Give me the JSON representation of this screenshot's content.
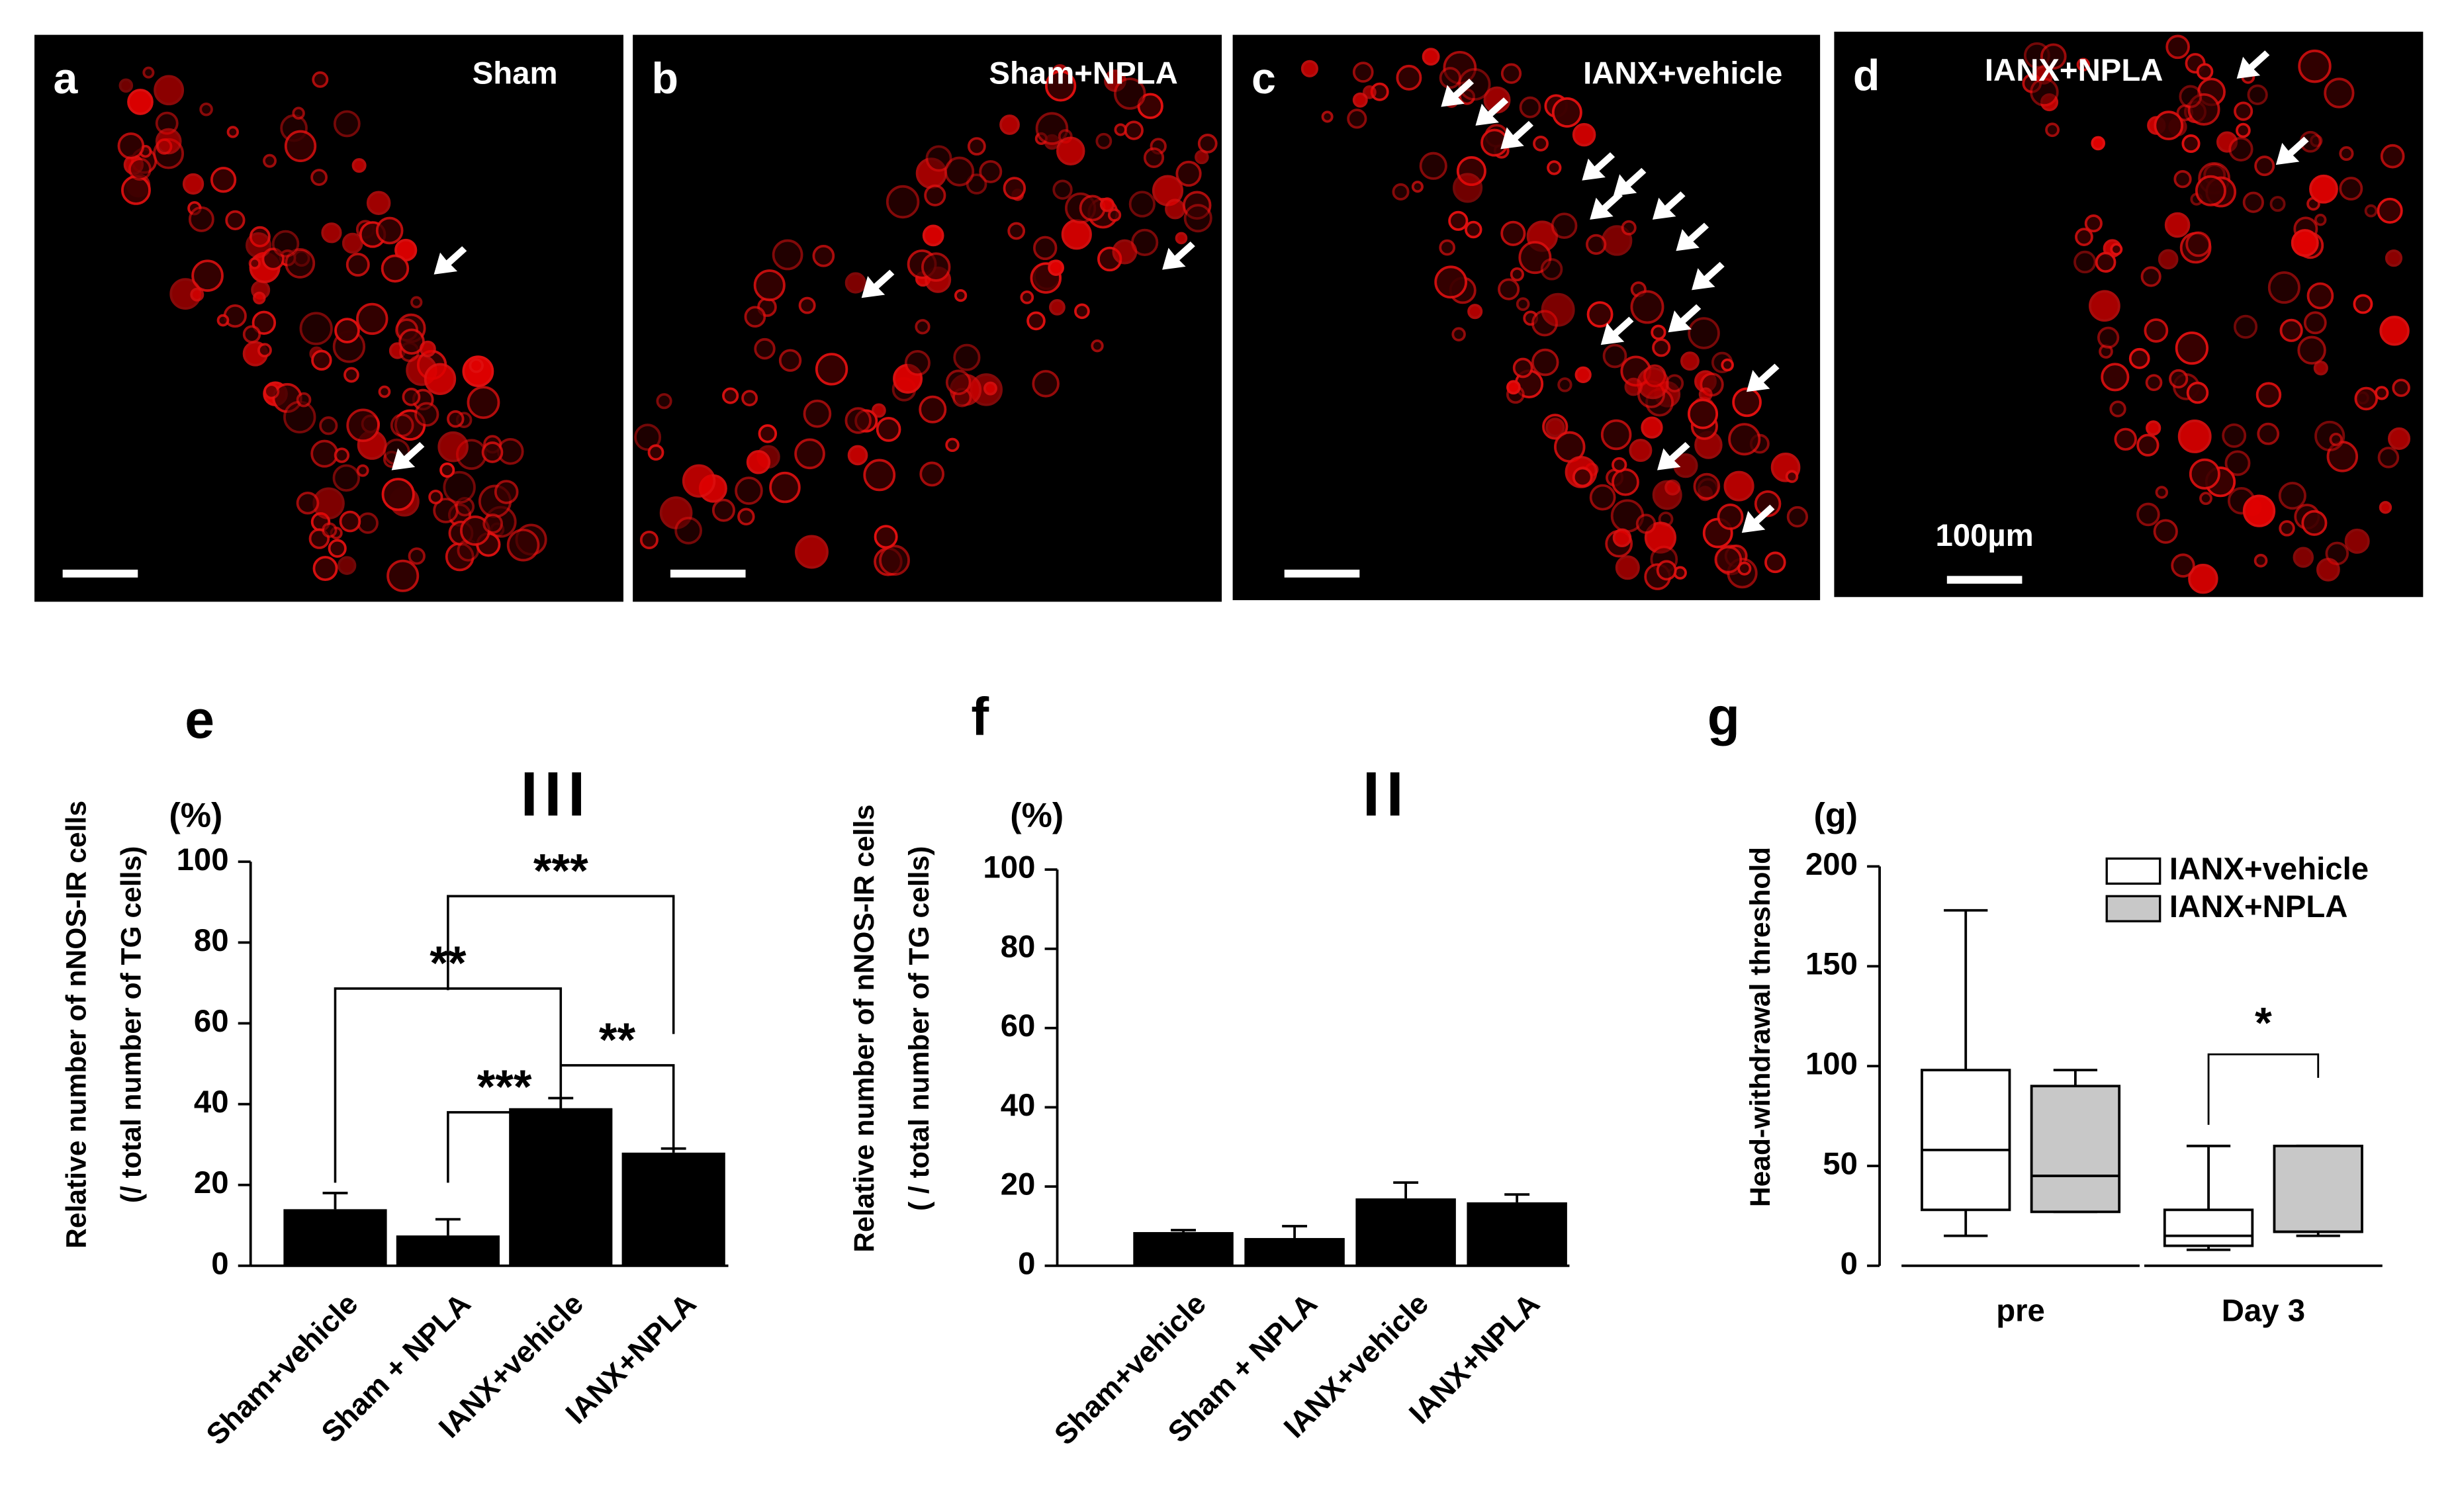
{
  "panels": [
    {
      "letter": "a",
      "label": "Sham"
    },
    {
      "letter": "b",
      "label": "Sham+NPLA"
    },
    {
      "letter": "c",
      "label": "IANX+vehicle"
    },
    {
      "letter": "d",
      "label": "IANX+NPLA",
      "scale_label": "100µm"
    }
  ],
  "chart_data": [
    {
      "type": "bar",
      "letter": "e",
      "unit": "(%)",
      "ylabel": [
        "Relative number of nNOS-IR cells",
        "(/ total number of TG cells)"
      ],
      "annotation": "III",
      "categories": [
        "Sham+vehicle",
        "Sham + NPLA",
        "IANX+vehicle",
        "IANX+NPLA"
      ],
      "values": [
        14,
        7.5,
        39,
        28
      ],
      "errors": [
        4,
        4,
        2.5,
        1
      ],
      "color": "#000000",
      "ylim": [
        0,
        100
      ],
      "yticks": [
        0,
        20,
        40,
        60,
        80,
        100
      ],
      "brackets": [
        {
          "from": 0,
          "to": 2,
          "label": "**"
        },
        {
          "from": 1,
          "to": 3,
          "label": "***"
        },
        {
          "from": 1,
          "to": 2,
          "label": "***"
        },
        {
          "from": 2,
          "to": 3,
          "label": "**"
        }
      ]
    },
    {
      "type": "bar",
      "letter": "f",
      "unit": "(%)",
      "ylabel": [
        "Relative number of nNOS-IR cells",
        "( / total number of TG cells)"
      ],
      "annotation": "II",
      "categories": [
        "Sham+vehicle",
        "Sham + NPLA",
        "IANX+vehicle",
        "IANX+NPLA"
      ],
      "values": [
        8.5,
        7,
        17,
        16
      ],
      "errors": [
        0.5,
        3,
        4,
        2
      ],
      "color": "#000000",
      "ylim": [
        0,
        100
      ],
      "yticks": [
        0,
        20,
        40,
        60,
        80,
        100
      ]
    },
    {
      "type": "box",
      "letter": "g",
      "unit": "(g)",
      "ylabel": [
        "Head-withdrawal threshold"
      ],
      "categories": [
        "pre",
        "Day 3"
      ],
      "series": [
        {
          "name": "IANX+vehicle",
          "color": "#ffffff",
          "min": [
            15,
            8
          ],
          "q1": [
            28,
            10
          ],
          "median": [
            58,
            15
          ],
          "q3": [
            98,
            28
          ],
          "max": [
            178,
            60
          ]
        },
        {
          "name": "IANX+NPLA",
          "color": "#c8c8c8",
          "min": [
            27,
            15
          ],
          "q1": [
            27,
            17
          ],
          "median": [
            45,
            17
          ],
          "q3": [
            90,
            60
          ],
          "max": [
            98,
            60
          ]
        }
      ],
      "ylim": [
        0,
        200
      ],
      "yticks": [
        0,
        50,
        100,
        150,
        200
      ],
      "brackets": [
        {
          "category": 1,
          "label": "*"
        }
      ]
    }
  ]
}
